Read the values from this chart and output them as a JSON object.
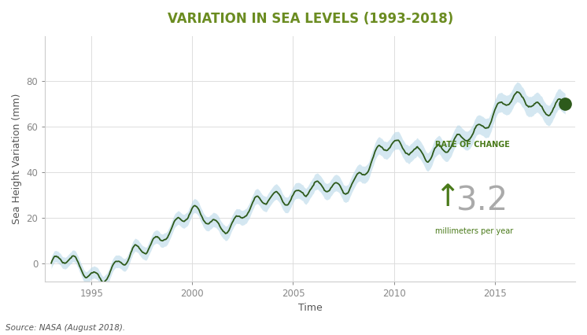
{
  "title": "VARIATION IN SEA LEVELS (1993-2018)",
  "title_color": "#6b8c21",
  "xlabel": "Time",
  "ylabel": "Sea Height Variation (mm)",
  "source_text": "Source: NASA (August 2018).",
  "rate_label": "RATE OF CHANGE",
  "rate_value": "3.2",
  "rate_unit": "millimeters per year",
  "line_color": "#2d5a1b",
  "band_color": "#b8d8e8",
  "dot_color": "#2d5a1b",
  "bg_color": "#ffffff",
  "grid_color": "#dddddd",
  "ylim": [
    -8,
    100
  ],
  "xlim_start": 1992.7,
  "xlim_end": 2019.0,
  "xticks": [
    1995,
    2000,
    2005,
    2010,
    2015
  ],
  "yticks": [
    0,
    20,
    40,
    60,
    80
  ],
  "annotation_color": "#4a7a1a",
  "rate_number_color": "#aaaaaa",
  "title_fontsize": 12,
  "axis_label_fontsize": 9,
  "tick_fontsize": 8.5
}
